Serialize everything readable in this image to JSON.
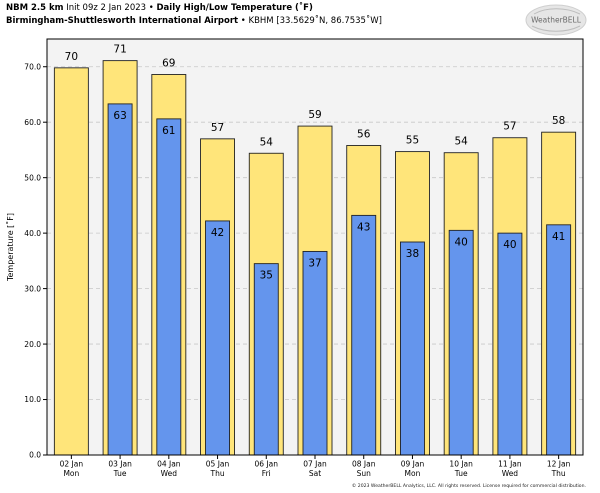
{
  "header": {
    "line1_model": "NBM 2.5 km",
    "line1_init": "Init 09z 2 Jan 2023",
    "line1_sep": "•",
    "line1_title": "Daily High/Low Temperature (˚F)",
    "line2_station": "Birmingham-Shuttlesworth International Airport",
    "line2_sep": "•",
    "line2_coords": "KBHM [33.5629˚N, 86.7535˚W]"
  },
  "logo": {
    "text": "WeatherBELL"
  },
  "footer": {
    "text": "© 2023 WeatherBELL Analytics, LLC. All rights reserved. License required for commercial distribution."
  },
  "colors": {
    "high": "#ffe57a",
    "low": "#6495ed",
    "plot_bg": "#f3f3f3",
    "grid": "#c8c8c8"
  },
  "chart_data": {
    "type": "bar",
    "title": "Daily High/Low Temperature (˚F)",
    "ylabel": "Temperature [˚F]",
    "xlabel": "",
    "ylim": [
      0,
      75
    ],
    "yticks": [
      "0.0",
      "10.0",
      "20.0",
      "30.0",
      "40.0",
      "50.0",
      "60.0",
      "70.0"
    ],
    "categories": [
      "02 Jan",
      "03 Jan",
      "04 Jan",
      "05 Jan",
      "06 Jan",
      "07 Jan",
      "08 Jan",
      "09 Jan",
      "10 Jan",
      "11 Jan",
      "12 Jan"
    ],
    "weekdays": [
      "Mon",
      "Tue",
      "Wed",
      "Thu",
      "Fri",
      "Sat",
      "Sun",
      "Mon",
      "Tue",
      "Wed",
      "Thu"
    ],
    "series": [
      {
        "name": "High",
        "values": [
          70,
          71,
          69,
          57,
          54,
          59,
          56,
          55,
          54,
          57,
          58
        ],
        "plotted": [
          69.8,
          71.1,
          68.6,
          57.0,
          54.4,
          59.3,
          55.8,
          54.7,
          54.5,
          57.2,
          58.2
        ]
      },
      {
        "name": "Low",
        "values": [
          null,
          63,
          61,
          42,
          35,
          37,
          43,
          38,
          40,
          40,
          41
        ],
        "plotted": [
          null,
          63.3,
          60.6,
          42.2,
          34.5,
          36.7,
          43.2,
          38.4,
          40.5,
          40.0,
          41.5
        ]
      }
    ]
  }
}
